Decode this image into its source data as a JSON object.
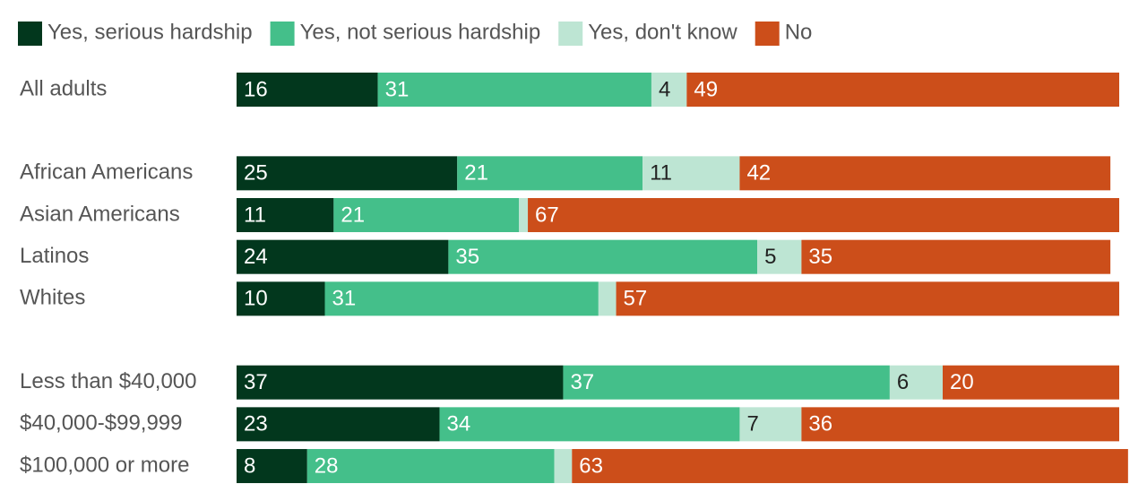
{
  "chart_data": {
    "type": "stacked-bar-horizontal",
    "categories": [
      "All adults",
      null,
      "African Americans",
      "Asian Americans",
      "Latinos",
      "Whites",
      null,
      "Less than $40,000",
      "$40,000-$99,999",
      "$100,000 or more"
    ],
    "series": [
      {
        "name": "Yes, serious hardship",
        "color": "#02371d",
        "values": [
          16,
          null,
          25,
          11,
          24,
          10,
          null,
          37,
          23,
          8
        ]
      },
      {
        "name": "Yes, not serious hardship",
        "color": "#44bf8a",
        "values": [
          31,
          null,
          21,
          21,
          35,
          31,
          null,
          37,
          34,
          28
        ]
      },
      {
        "name": "Yes, don't know",
        "color": "#bde5d3",
        "values": [
          4,
          null,
          11,
          1,
          5,
          2,
          null,
          6,
          7,
          2
        ]
      },
      {
        "name": "No",
        "color": "#cc4e1a",
        "values": [
          49,
          null,
          42,
          67,
          35,
          57,
          null,
          20,
          36,
          63
        ]
      }
    ]
  }
}
